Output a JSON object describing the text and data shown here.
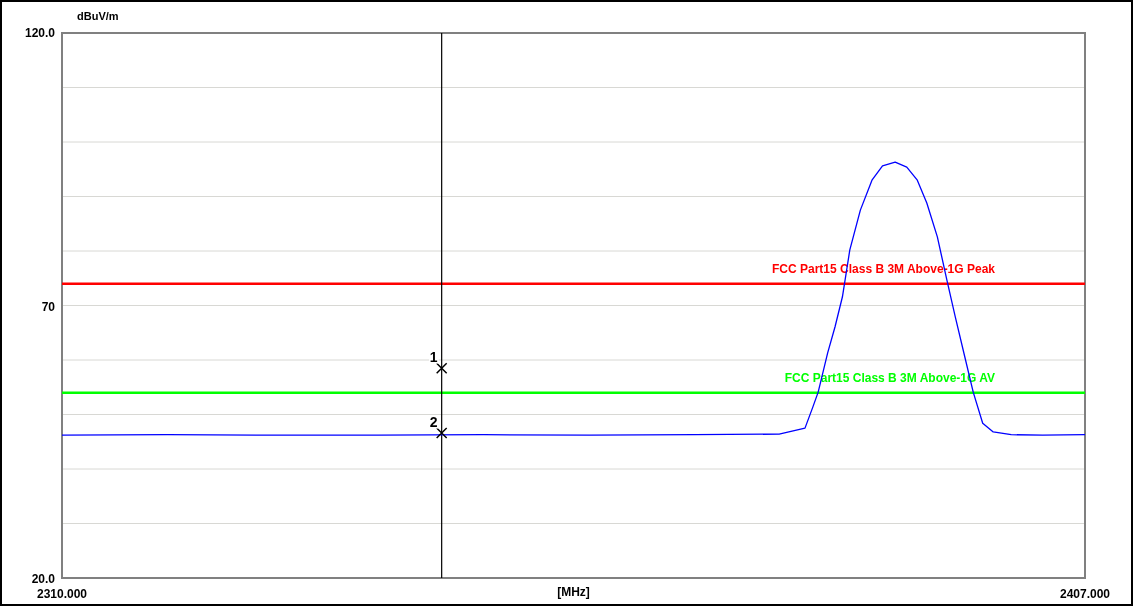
{
  "chart_data": {
    "type": "line",
    "ylabel": "dBuV/m",
    "xlabel": "[MHz]",
    "xlim": [
      2310,
      2407
    ],
    "xticks": [
      {
        "value": 2310,
        "label": "2310.000"
      },
      {
        "value": 2407,
        "label": "2407.000"
      }
    ],
    "ylim": [
      20,
      120
    ],
    "yticks": [
      {
        "value": 20,
        "label": "20.0"
      },
      {
        "value": 30,
        "label": null
      },
      {
        "value": 40,
        "label": null
      },
      {
        "value": 50,
        "label": null
      },
      {
        "value": 60,
        "label": null
      },
      70,
      {
        "value": 80,
        "label": null
      },
      {
        "value": 90,
        "label": null
      },
      {
        "value": 100,
        "label": null
      },
      {
        "value": 110,
        "label": null
      },
      {
        "value": 120,
        "label": "120.0"
      }
    ],
    "grid": "y",
    "series": [
      {
        "color": "#0000ff",
        "marker": "none",
        "x": [
          2310,
          2320,
          2330,
          2340,
          2350,
          2360,
          2370,
          2378,
          2380.45,
          2381.2,
          2381.7,
          2382.6,
          2383.3,
          2384,
          2384.7,
          2385.7,
          2386.8,
          2387.8,
          2389,
          2390.1,
          2391.1,
          2392,
          2393,
          2393.9,
          2394.7,
          2395.6,
          2396.4,
          2397.3,
          2398.3,
          2400,
          2403,
          2407
        ],
        "values": [
          46.2,
          46.3,
          46.2,
          46.2,
          46.3,
          46.2,
          46.3,
          46.4,
          47.5,
          51.4,
          54.1,
          61.3,
          66.1,
          71.6,
          80.2,
          87.5,
          93,
          95.6,
          96.3,
          95.4,
          93,
          88.8,
          82.6,
          74.7,
          67.9,
          60.6,
          54.1,
          48.4,
          46.8,
          46.3,
          46.2,
          46.3
        ]
      },
      {
        "type": "scatter",
        "color": "#000000",
        "marker": "cross",
        "x": [
          2346,
          2346
        ],
        "values": [
          58.5,
          46.6
        ]
      }
    ],
    "ref_lines": [
      {
        "axis": "y",
        "value": 74,
        "label": "FCC Part15 Class B 3M Above-1G Peak",
        "color": "#ff0000"
      },
      {
        "axis": "y",
        "value": 54,
        "label": "FCC Part15 Class B 3M Above-1G AV",
        "color": "#00ff00"
      },
      {
        "axis": "x",
        "value": 2346,
        "color": "#000000"
      }
    ],
    "annotations": [
      {
        "text": "1",
        "x": 2346,
        "y": 58.5
      },
      {
        "text": "2",
        "x": 2346,
        "y": 46.6
      }
    ]
  }
}
